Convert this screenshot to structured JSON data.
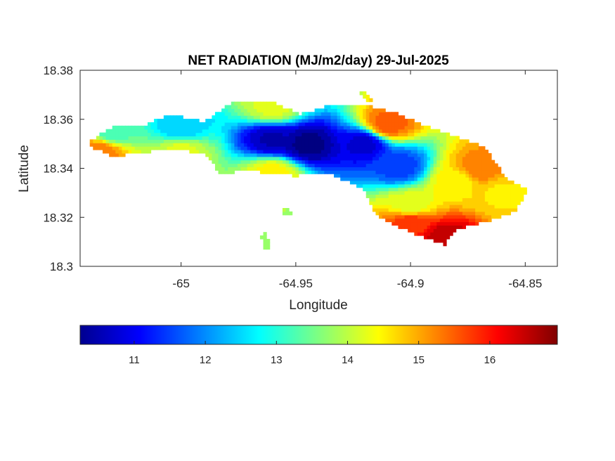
{
  "chart_data": {
    "type": "heatmap",
    "title": "NET RADIATION (MJ/m2/day) 29-Jul-2025",
    "xlabel": "Longitude",
    "ylabel": "Latitude",
    "xlim": [
      -65.044,
      -64.836
    ],
    "ylim": [
      18.3,
      18.38
    ],
    "xticks": [
      -65,
      -64.95,
      -64.9,
      -64.85
    ],
    "xtick_labels": [
      "-65",
      "-64.95",
      "-64.9",
      "-64.85"
    ],
    "yticks": [
      18.3,
      18.32,
      18.34,
      18.36,
      18.38
    ],
    "ytick_labels": [
      "18.3",
      "18.32",
      "18.34",
      "18.36",
      "18.38"
    ],
    "colorbar": {
      "colormap": "jet",
      "range": [
        10.24,
        16.95
      ],
      "ticks": [
        11,
        12,
        13,
        14,
        15,
        16
      ],
      "tick_labels": [
        "11",
        "12",
        "13",
        "14",
        "15",
        "16"
      ],
      "placement": "bottom"
    },
    "grid": false,
    "field_samples": [
      {
        "lon": -65.03,
        "lat": 18.355,
        "value": 13.2
      },
      {
        "lon": -65.035,
        "lat": 18.347,
        "value": 15.3
      },
      {
        "lon": -65.0,
        "lat": 18.357,
        "value": 12.4
      },
      {
        "lon": -64.96,
        "lat": 18.352,
        "value": 10.6
      },
      {
        "lon": -64.945,
        "lat": 18.35,
        "value": 10.3
      },
      {
        "lon": -64.92,
        "lat": 18.35,
        "value": 10.8
      },
      {
        "lon": -64.905,
        "lat": 18.341,
        "value": 11.5
      },
      {
        "lon": -64.96,
        "lat": 18.365,
        "value": 14.2
      },
      {
        "lon": -64.96,
        "lat": 18.338,
        "value": 14.5
      },
      {
        "lon": -64.9,
        "lat": 18.325,
        "value": 14.2
      },
      {
        "lon": -64.88,
        "lat": 18.335,
        "value": 14.5
      },
      {
        "lon": -64.87,
        "lat": 18.34,
        "value": 15.3
      },
      {
        "lon": -64.86,
        "lat": 18.33,
        "value": 14.6
      },
      {
        "lon": -64.885,
        "lat": 18.312,
        "value": 16.5
      },
      {
        "lon": -64.9,
        "lat": 18.318,
        "value": 15.8
      },
      {
        "lon": -64.91,
        "lat": 18.358,
        "value": 15.5
      },
      {
        "lon": -65.0,
        "lat": 18.347,
        "value": 14.2
      }
    ]
  }
}
